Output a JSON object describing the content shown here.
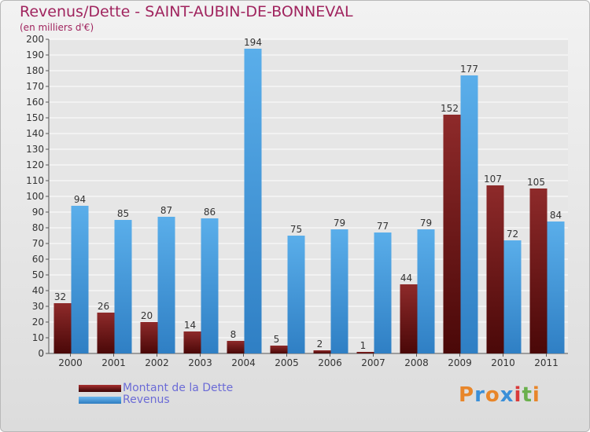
{
  "chart_data": {
    "type": "bar",
    "title": "Revenus/Dette - SAINT-AUBIN-DE-BONNEVAL",
    "subtitle": "(en milliers d'€)",
    "categories": [
      "2000",
      "2001",
      "2002",
      "2003",
      "2004",
      "2005",
      "2006",
      "2007",
      "2008",
      "2009",
      "2010",
      "2011"
    ],
    "series": [
      {
        "name": "Montant de la Dette",
        "color": "#7a1e1e",
        "values": [
          32,
          26,
          20,
          14,
          8,
          5,
          2,
          1,
          44,
          152,
          107,
          105
        ]
      },
      {
        "name": "Revenus",
        "color": "#4a9ee0",
        "values": [
          94,
          85,
          87,
          86,
          194,
          75,
          79,
          77,
          79,
          177,
          72,
          84
        ]
      }
    ],
    "ylim": [
      0,
      200
    ],
    "yticks": [
      0,
      10,
      20,
      30,
      40,
      50,
      60,
      70,
      80,
      90,
      100,
      110,
      120,
      130,
      140,
      150,
      160,
      170,
      180,
      190,
      200
    ],
    "grid": true,
    "legend": "bottom-left"
  },
  "logo": {
    "letters": [
      "P",
      "r",
      "o",
      "x",
      "i",
      "t",
      "i"
    ],
    "colors": [
      "#e8862a",
      "#3a8fd8",
      "#e8862a",
      "#3a8fd8",
      "#d93a3a",
      "#6ab04c",
      "#e8862a"
    ]
  }
}
